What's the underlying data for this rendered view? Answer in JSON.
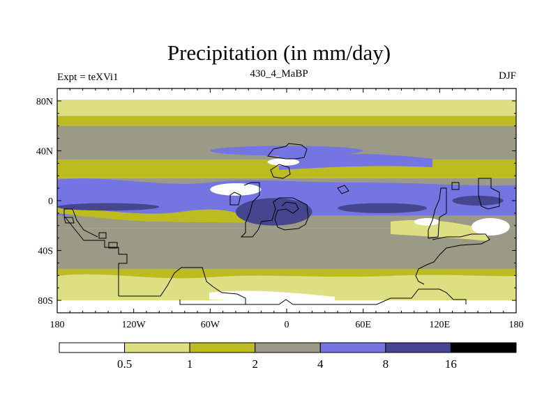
{
  "chart_data": {
    "type": "heatmap",
    "title": "Precipitation (in mm/day)",
    "left_string": "Expt = teXVi1",
    "center_string": "430_4_MaBP",
    "right_string": "DJF",
    "units": "mm/day",
    "x_range": [
      -180,
      180
    ],
    "y_range": [
      -90,
      90
    ],
    "x_ticks": [
      {
        "value": -180,
        "label": "180"
      },
      {
        "value": -120,
        "label": "120W"
      },
      {
        "value": -60,
        "label": "60W"
      },
      {
        "value": 0,
        "label": "0"
      },
      {
        "value": 60,
        "label": "60E"
      },
      {
        "value": 120,
        "label": "120E"
      },
      {
        "value": 180,
        "label": "180"
      }
    ],
    "y_ticks": [
      {
        "value": 80,
        "label": "80N"
      },
      {
        "value": 40,
        "label": "40N"
      },
      {
        "value": 0,
        "label": "0"
      },
      {
        "value": -40,
        "label": "40S"
      },
      {
        "value": -80,
        "label": "80S"
      }
    ],
    "colorbar": {
      "levels": [
        "0.5",
        "1",
        "2",
        "4",
        "8",
        "16"
      ],
      "colors": [
        "#ffffff",
        "#dede82",
        "#bcbc20",
        "#9a9a86",
        "#7474e2",
        "#464690",
        "#000000"
      ]
    },
    "zonal_bands_lat_top_to_bottom": [
      {
        "lat_from": 90,
        "lat_to": 81,
        "color_index": 0
      },
      {
        "lat_from": 81,
        "lat_to": 68,
        "color_index": 1
      },
      {
        "lat_from": 68,
        "lat_to": 60,
        "color_index": 2
      },
      {
        "lat_from": 60,
        "lat_to": 45,
        "color_index": 3
      },
      {
        "lat_from": 45,
        "lat_to": 33,
        "color_index": 3
      },
      {
        "lat_from": 33,
        "lat_to": 18,
        "color_index": 2
      },
      {
        "lat_from": 18,
        "lat_to": 8,
        "color_index": 3
      },
      {
        "lat_from": 8,
        "lat_to": -12,
        "color_index": 4
      },
      {
        "lat_from": -12,
        "lat_to": -22,
        "color_index": 3
      },
      {
        "lat_from": -22,
        "lat_to": -55,
        "color_index": 3
      },
      {
        "lat_from": -55,
        "lat_to": -68,
        "color_index": 2
      },
      {
        "lat_from": -68,
        "lat_to": -80,
        "color_index": 1
      },
      {
        "lat_from": -80,
        "lat_to": -90,
        "color_index": 0
      }
    ],
    "features": [
      {
        "name": "itcz-core-pacific",
        "lon": [
          -180,
          -100
        ],
        "lat": [
          -8,
          -2
        ],
        "color_index": 5
      },
      {
        "name": "itcz-core-atlantic",
        "lon": [
          -40,
          20
        ],
        "lat": [
          -20,
          2
        ],
        "color_index": 5
      },
      {
        "name": "itcz-core-indian",
        "lon": [
          40,
          110
        ],
        "lat": [
          -10,
          -2
        ],
        "color_index": 5
      },
      {
        "name": "itcz-core-westpac",
        "lon": [
          130,
          170
        ],
        "lat": [
          -4,
          4
        ],
        "color_index": 5
      },
      {
        "name": "dry-patch-atlantic-n",
        "lon": [
          -60,
          -20
        ],
        "lat": [
          4,
          14
        ],
        "color_index": 0
      },
      {
        "name": "dry-patch-n-africa",
        "lon": [
          -15,
          10
        ],
        "lat": [
          28,
          34
        ],
        "color_index": 0
      },
      {
        "name": "dry-patch-se-pacific",
        "lon": [
          145,
          175
        ],
        "lat": [
          -28,
          -14
        ],
        "color_index": 0
      },
      {
        "name": "dry-patch-indian-s",
        "lon": [
          100,
          120
        ],
        "lat": [
          -20,
          -14
        ],
        "color_index": 0
      },
      {
        "name": "wet-arc-n-midlat",
        "lon": [
          -60,
          60
        ],
        "lat": [
          36,
          44
        ],
        "color_index": 4
      }
    ],
    "coastline_note": "Paleogeographic continental outlines (Ordovician) drawn as black polylines"
  }
}
